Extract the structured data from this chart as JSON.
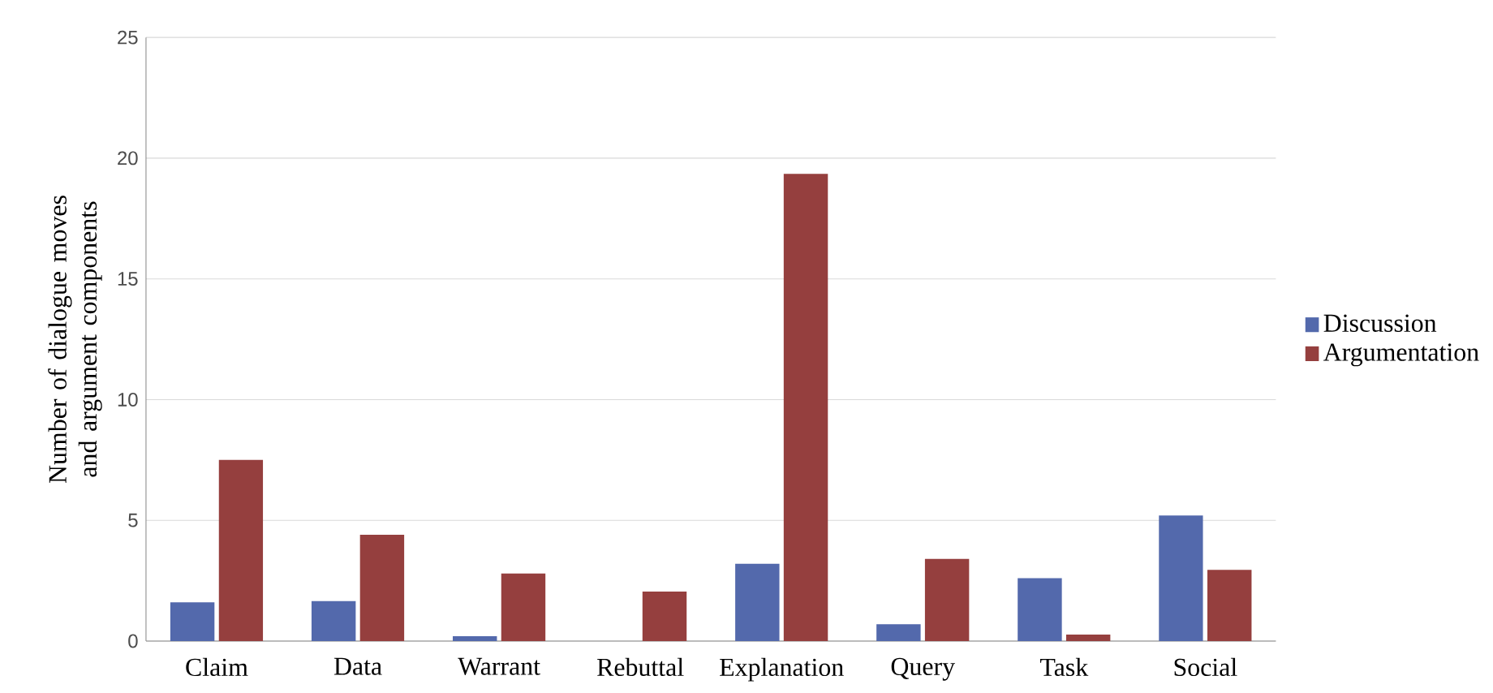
{
  "chart_data": {
    "type": "bar",
    "ylabel": "Number of dialogue moves and argument components",
    "categories": [
      "Claim",
      "Data",
      "Warrant",
      "Rebuttal",
      "Explanation",
      "Query",
      "Task",
      "Social"
    ],
    "series": [
      {
        "name": "Discussion",
        "color": "#5369ac",
        "values": [
          1.6,
          1.65,
          0.2,
          0,
          3.2,
          0.7,
          2.6,
          5.2
        ]
      },
      {
        "name": "Argumentation",
        "color": "#953f3e",
        "values": [
          7.5,
          4.4,
          2.8,
          2.05,
          19.35,
          3.4,
          0.27,
          2.95
        ]
      }
    ],
    "ylim": [
      0,
      25
    ],
    "yticks": [
      0,
      5,
      10,
      15,
      20,
      25
    ],
    "grid": "y",
    "legend": "right"
  }
}
